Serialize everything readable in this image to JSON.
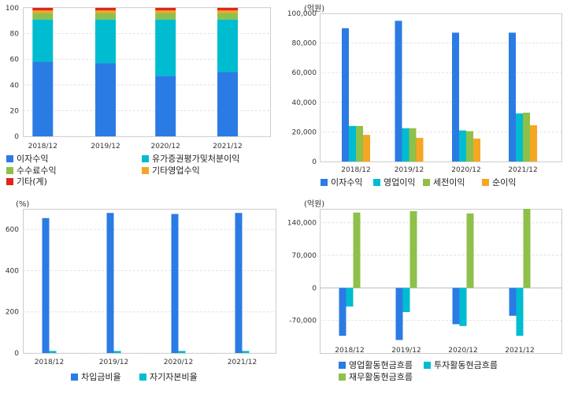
{
  "charts": [
    {
      "type": "bar",
      "stacked": true,
      "unit": "",
      "categories": [
        "2018/12",
        "2019/12",
        "2020/12",
        "2021/12"
      ],
      "ylim": [
        0,
        100
      ],
      "yticks": [
        0,
        20,
        40,
        60,
        80,
        100
      ],
      "series": [
        {
          "name": "이자수익",
          "color": "#2b7be4",
          "values": [
            58,
            57,
            47,
            50
          ]
        },
        {
          "name": "유가증권평가및처분이익",
          "color": "#00bcd0",
          "values": [
            33,
            34,
            44,
            41
          ]
        },
        {
          "name": "수수료수익",
          "color": "#8fc04a",
          "values": [
            5,
            5,
            5,
            5
          ]
        },
        {
          "name": "기타영업수익",
          "color": "#f5a623",
          "values": [
            2,
            2,
            2,
            2
          ]
        },
        {
          "name": "기타(계)",
          "color": "#e0261b",
          "values": [
            2,
            2,
            2,
            2
          ]
        }
      ]
    },
    {
      "type": "bar",
      "unit": "(억원)",
      "categories": [
        "2018/12",
        "2019/12",
        "2020/12",
        "2021/12"
      ],
      "ylim": [
        0,
        100000
      ],
      "yticks": [
        0,
        20000,
        40000,
        60000,
        80000,
        100000
      ],
      "ytick_labels": [
        "0",
        "20,000",
        "40,000",
        "60,000",
        "80,000",
        "100,000"
      ],
      "series": [
        {
          "name": "이자수익",
          "color": "#2b7be4",
          "values": [
            90000,
            95000,
            87000,
            87000
          ]
        },
        {
          "name": "영업이익",
          "color": "#00bcd0",
          "values": [
            24000,
            22500,
            21000,
            32500
          ]
        },
        {
          "name": "세전이익",
          "color": "#8fc04a",
          "values": [
            24000,
            22500,
            20500,
            33000
          ]
        },
        {
          "name": "순이익",
          "color": "#f5a623",
          "values": [
            18000,
            16000,
            15500,
            24500
          ]
        }
      ]
    },
    {
      "type": "bar",
      "unit": "(%)",
      "categories": [
        "2018/12",
        "2019/12",
        "2020/12",
        "2021/12"
      ],
      "ylim": [
        0,
        700
      ],
      "yticks": [
        0,
        200,
        400,
        600
      ],
      "ytick_labels": [
        "0",
        "200",
        "400",
        "600"
      ],
      "series": [
        {
          "name": "차입금비율",
          "color": "#2b7be4",
          "values": [
            655,
            680,
            675,
            680
          ]
        },
        {
          "name": "자기자본비율",
          "color": "#00bcd0",
          "values": [
            10,
            10,
            10,
            10
          ]
        }
      ]
    },
    {
      "type": "bar",
      "unit": "(억원)",
      "categories": [
        "2018/12",
        "2019/12",
        "2020/12",
        "2021/12"
      ],
      "ylim": [
        -140000,
        170000
      ],
      "yticks": [
        -70000,
        0,
        70000,
        140000
      ],
      "ytick_labels": [
        "-70,000",
        "0",
        "70,000",
        "140,000"
      ],
      "series": [
        {
          "name": "영업활동현금흐름",
          "color": "#2b7be4",
          "values": [
            -103000,
            -112000,
            -78000,
            -60000
          ]
        },
        {
          "name": "투자활동현금흐름",
          "color": "#00bcd0",
          "values": [
            -40000,
            -52000,
            -82000,
            -103000
          ]
        },
        {
          "name": "재무활동현금흐름",
          "color": "#8fc04a",
          "values": [
            162000,
            165000,
            160000,
            170000
          ]
        }
      ]
    }
  ]
}
